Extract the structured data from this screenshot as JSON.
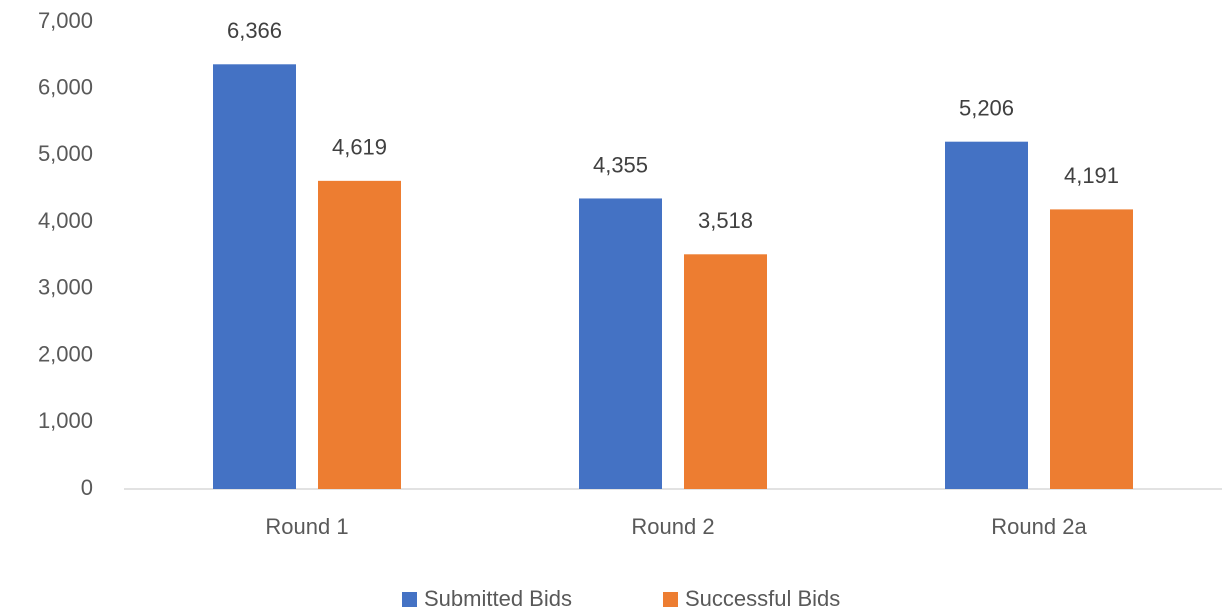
{
  "chart_data": {
    "type": "bar",
    "categories": [
      "Round 1",
      "Round 2",
      "Round 2a"
    ],
    "series": [
      {
        "name": "Submitted Bids",
        "color": "#4472c4",
        "values": [
          6366,
          4355,
          5206
        ],
        "value_labels": [
          "6,366",
          "4,355",
          "5,206"
        ]
      },
      {
        "name": "Successful Bids",
        "color": "#ed7d31",
        "values": [
          4619,
          3518,
          4191
        ],
        "value_labels": [
          "4,619",
          "3,518",
          "4,191"
        ]
      }
    ],
    "ylim": [
      0,
      7000
    ],
    "yticks": [
      0,
      {
        "value": 1000,
        "label": "1,000"
      },
      {
        "value": 2000,
        "label": "2,000"
      },
      {
        "value": 3000,
        "label": "3,000"
      },
      {
        "value": 4000,
        "label": "4,000"
      },
      {
        "value": 5000,
        "label": "5,000"
      },
      {
        "value": 6000,
        "label": "6,000"
      },
      {
        "value": 7000,
        "label": "7,000"
      }
    ],
    "grid": false,
    "legend": "bottom"
  }
}
